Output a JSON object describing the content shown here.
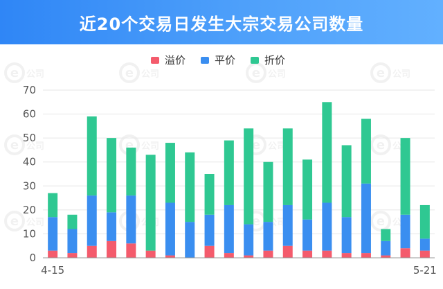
{
  "header": {
    "title": "近20个交易日发生大宗交易公司数量"
  },
  "watermark": {
    "text": "公司"
  },
  "colors": {
    "premium": "#f45b6c",
    "par": "#3a8ef0",
    "discount": "#2fc892",
    "grid": "#e6e6e6",
    "axis": "#999999"
  },
  "chart_data": {
    "type": "bar",
    "stacked": true,
    "title": "近20个交易日发生大宗交易公司数量",
    "legend_position": "top-center",
    "grid": true,
    "ylim": [
      0,
      70
    ],
    "yticks": [
      0,
      10,
      20,
      30,
      40,
      50,
      60,
      70
    ],
    "x_start_label": "4-15",
    "x_end_label": "5-21",
    "categories": [
      "4-15",
      "",
      "",
      "",
      "",
      "",
      "",
      "",
      "",
      "",
      "",
      "",
      "",
      "",
      "",
      "",
      "",
      "",
      "",
      "5-21"
    ],
    "series": [
      {
        "name": "溢价",
        "color": "#f45b6c",
        "values": [
          3,
          2,
          5,
          7,
          6,
          3,
          1,
          0,
          5,
          2,
          1,
          3,
          5,
          3,
          3,
          2,
          2,
          1,
          4,
          3
        ]
      },
      {
        "name": "平价",
        "color": "#3a8ef0",
        "values": [
          14,
          10,
          21,
          12,
          20,
          0,
          22,
          15,
          13,
          20,
          13,
          12,
          17,
          13,
          20,
          15,
          29,
          6,
          14,
          5
        ]
      },
      {
        "name": "折价",
        "color": "#2fc892",
        "values": [
          10,
          6,
          33,
          31,
          20,
          40,
          25,
          29,
          17,
          27,
          40,
          25,
          32,
          25,
          42,
          30,
          27,
          5,
          32,
          14
        ]
      }
    ]
  }
}
